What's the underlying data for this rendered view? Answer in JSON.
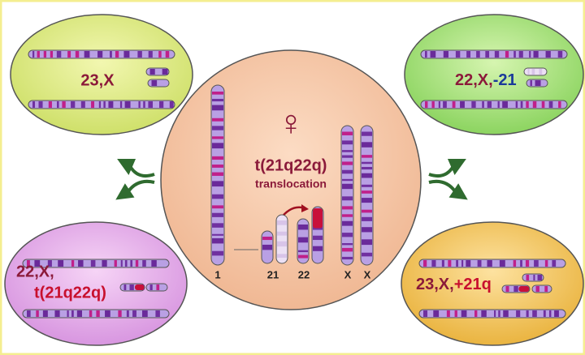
{
  "center": {
    "symbol": "♀",
    "label": "t(21q22q)",
    "sublabel": "translocation",
    "chromosome_labels": [
      "1",
      "21",
      "22",
      "X",
      "X"
    ]
  },
  "gametes": [
    {
      "parts": [
        "23,X"
      ]
    },
    {
      "parts": [
        "22,X,",
        "-21"
      ]
    },
    {
      "parts": [
        "22,X,",
        "t(21q22q)"
      ]
    },
    {
      "parts": [
        "23,X,",
        "+21q"
      ]
    }
  ]
}
